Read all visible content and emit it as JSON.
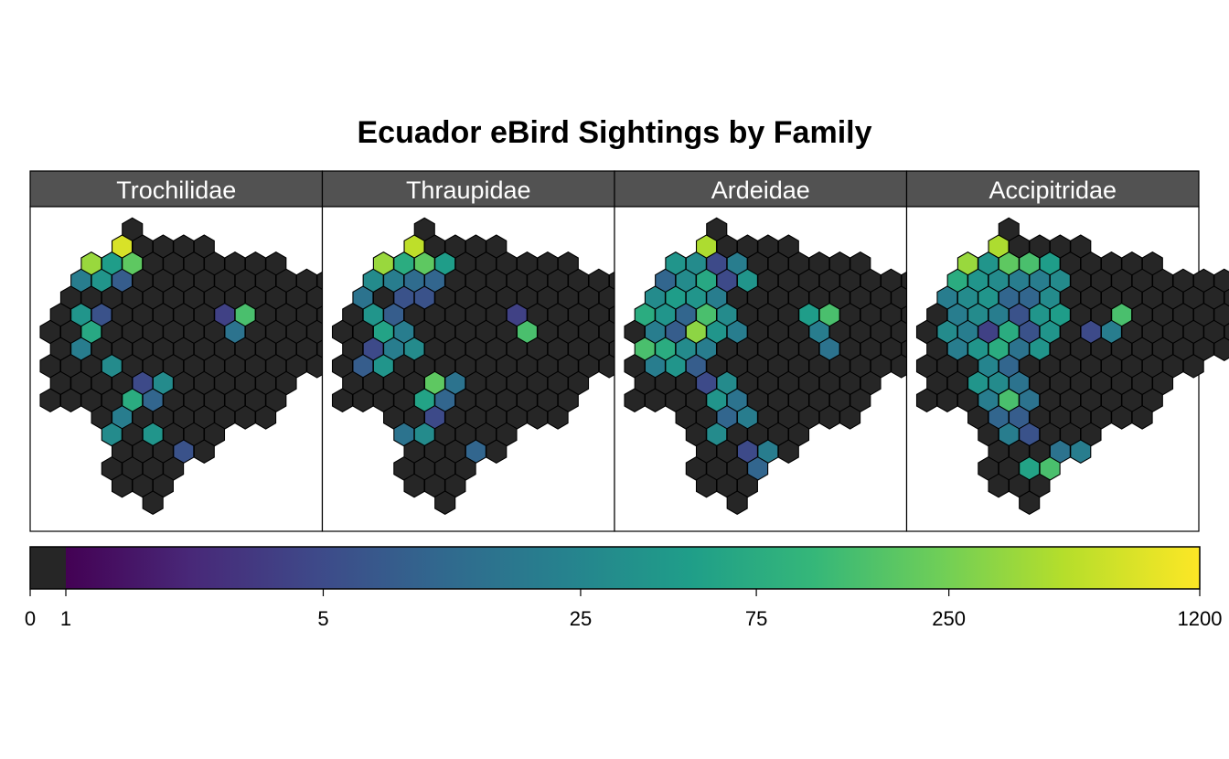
{
  "chart_data": {
    "type": "heatmap",
    "title": "Ecuador eBird Sightings by Family",
    "panels": [
      {
        "name": "Trochilidae",
        "highlight": [
          [
            7,
            0,
            1200
          ],
          [
            7,
            1,
            0
          ],
          [
            7,
            3,
            800
          ],
          [
            7,
            4,
            0
          ],
          [
            6,
            1,
            200
          ],
          [
            6,
            2,
            400
          ],
          [
            6,
            3,
            50
          ],
          [
            6,
            4,
            200
          ],
          [
            5,
            1,
            20
          ],
          [
            5,
            2,
            40
          ],
          [
            5,
            3,
            8
          ],
          [
            4,
            2,
            0
          ],
          [
            3,
            1,
            40
          ],
          [
            3,
            2,
            6
          ],
          [
            2,
            2,
            70
          ],
          [
            1,
            1,
            20
          ],
          [
            0,
            3,
            30
          ],
          [
            -1,
            4,
            5
          ],
          [
            -1,
            5,
            30
          ],
          [
            -2,
            4,
            80
          ],
          [
            -2,
            5,
            10
          ],
          [
            -3,
            3,
            20
          ],
          [
            -4,
            3,
            30
          ],
          [
            -4,
            5,
            40
          ],
          [
            -5,
            6,
            6
          ],
          [
            -6,
            7,
            50
          ],
          [
            -6,
            8,
            30
          ],
          [
            -7,
            6,
            40
          ],
          [
            -7,
            8,
            10
          ],
          [
            -8,
            6,
            12
          ],
          [
            -8,
            7,
            250
          ],
          [
            -9,
            8,
            5
          ],
          [
            -9,
            9,
            20
          ],
          [
            -10,
            8,
            150
          ],
          [
            -10,
            9,
            20
          ],
          [
            2,
            9,
            15
          ],
          [
            3,
            9,
            150
          ],
          [
            3,
            8,
            4
          ]
        ]
      },
      {
        "name": "Thraupidae",
        "highlight": [
          [
            7,
            0,
            900
          ],
          [
            7,
            3,
            600
          ],
          [
            6,
            1,
            100
          ],
          [
            6,
            2,
            400
          ],
          [
            6,
            3,
            80
          ],
          [
            6,
            4,
            200
          ],
          [
            6,
            5,
            50
          ],
          [
            5,
            1,
            30
          ],
          [
            5,
            2,
            20
          ],
          [
            5,
            3,
            12
          ],
          [
            5,
            4,
            10
          ],
          [
            4,
            1,
            15
          ],
          [
            4,
            3,
            6
          ],
          [
            4,
            4,
            6
          ],
          [
            3,
            1,
            40
          ],
          [
            3,
            2,
            8
          ],
          [
            2,
            2,
            60
          ],
          [
            2,
            3,
            20
          ],
          [
            1,
            1,
            5
          ],
          [
            1,
            2,
            20
          ],
          [
            1,
            3,
            30
          ],
          [
            0,
            1,
            8
          ],
          [
            0,
            2,
            40
          ],
          [
            -1,
            4,
            200
          ],
          [
            -1,
            5,
            15
          ],
          [
            -2,
            4,
            60
          ],
          [
            -2,
            5,
            10
          ],
          [
            -3,
            4,
            5
          ],
          [
            -4,
            2,
            20
          ],
          [
            -4,
            3,
            15
          ],
          [
            -4,
            4,
            30
          ],
          [
            -5,
            6,
            10
          ],
          [
            -6,
            7,
            40
          ],
          [
            -6,
            8,
            20
          ],
          [
            -6,
            9,
            5
          ],
          [
            -7,
            7,
            15
          ],
          [
            -7,
            8,
            5
          ],
          [
            -7,
            9,
            40
          ],
          [
            -8,
            6,
            100
          ],
          [
            -8,
            7,
            300
          ],
          [
            -8,
            8,
            30
          ],
          [
            -9,
            7,
            10
          ],
          [
            -9,
            8,
            5
          ],
          [
            -10,
            8,
            200
          ],
          [
            -10,
            9,
            80
          ],
          [
            -10,
            10,
            30
          ],
          [
            2,
            9,
            150
          ],
          [
            3,
            8,
            4
          ]
        ]
      },
      {
        "name": "Ardeidae",
        "highlight": [
          [
            8,
            0,
            200
          ],
          [
            7,
            3,
            500
          ],
          [
            6,
            0,
            5
          ],
          [
            6,
            1,
            20
          ],
          [
            6,
            2,
            40
          ],
          [
            6,
            3,
            30
          ],
          [
            6,
            4,
            5
          ],
          [
            6,
            5,
            20
          ],
          [
            5,
            1,
            10
          ],
          [
            5,
            2,
            30
          ],
          [
            5,
            3,
            70
          ],
          [
            5,
            4,
            5
          ],
          [
            5,
            5,
            40
          ],
          [
            4,
            1,
            30
          ],
          [
            4,
            2,
            50
          ],
          [
            4,
            3,
            40
          ],
          [
            4,
            4,
            20
          ],
          [
            3,
            0,
            80
          ],
          [
            3,
            1,
            40
          ],
          [
            3,
            2,
            10
          ],
          [
            3,
            3,
            150
          ],
          [
            3,
            4,
            30
          ],
          [
            2,
            1,
            20
          ],
          [
            2,
            2,
            8
          ],
          [
            2,
            3,
            350
          ],
          [
            2,
            4,
            40
          ],
          [
            2,
            5,
            20
          ],
          [
            1,
            0,
            150
          ],
          [
            1,
            1,
            80
          ],
          [
            1,
            2,
            30
          ],
          [
            1,
            3,
            20
          ],
          [
            0,
            1,
            20
          ],
          [
            0,
            2,
            40
          ],
          [
            0,
            3,
            8
          ],
          [
            -1,
            3,
            5
          ],
          [
            -1,
            4,
            30
          ],
          [
            -2,
            4,
            40
          ],
          [
            -2,
            5,
            15
          ],
          [
            -3,
            4,
            10
          ],
          [
            -3,
            5,
            20
          ],
          [
            -4,
            4,
            30
          ],
          [
            -5,
            5,
            5
          ],
          [
            -5,
            6,
            20
          ],
          [
            -6,
            6,
            10
          ],
          [
            -6,
            7,
            15
          ],
          [
            -6,
            8,
            40
          ],
          [
            -7,
            6,
            50
          ],
          [
            -7,
            7,
            30
          ],
          [
            -7,
            8,
            80
          ],
          [
            -8,
            6,
            5
          ],
          [
            -8,
            7,
            100
          ],
          [
            -8,
            8,
            30
          ],
          [
            -9,
            6,
            20
          ],
          [
            -9,
            7,
            5
          ],
          [
            -9,
            8,
            40
          ],
          [
            -9,
            9,
            6
          ],
          [
            -10,
            6,
            30
          ],
          [
            -10,
            7,
            150
          ],
          [
            -10,
            8,
            40
          ],
          [
            -10,
            9,
            60
          ],
          [
            -11,
            7,
            80
          ],
          [
            -12,
            7,
            15
          ],
          [
            -12,
            8,
            30
          ],
          [
            -12,
            9,
            100
          ],
          [
            3,
            8,
            50
          ],
          [
            3,
            9,
            150
          ],
          [
            2,
            9,
            20
          ],
          [
            1,
            9,
            15
          ]
        ]
      },
      {
        "name": "Accipitridae",
        "highlight": [
          [
            8,
            0,
            400
          ],
          [
            7,
            3,
            500
          ],
          [
            6,
            1,
            300
          ],
          [
            6,
            2,
            400
          ],
          [
            6,
            3,
            40
          ],
          [
            6,
            4,
            200
          ],
          [
            6,
            5,
            150
          ],
          [
            6,
            6,
            50
          ],
          [
            5,
            1,
            80
          ],
          [
            5,
            2,
            40
          ],
          [
            5,
            3,
            30
          ],
          [
            5,
            4,
            20
          ],
          [
            5,
            5,
            20
          ],
          [
            5,
            6,
            30
          ],
          [
            4,
            1,
            20
          ],
          [
            4,
            2,
            30
          ],
          [
            4,
            3,
            40
          ],
          [
            4,
            4,
            10
          ],
          [
            4,
            5,
            10
          ],
          [
            4,
            6,
            30
          ],
          [
            3,
            1,
            20
          ],
          [
            3,
            2,
            30
          ],
          [
            3,
            3,
            20
          ],
          [
            3,
            4,
            6
          ],
          [
            3,
            5,
            40
          ],
          [
            3,
            6,
            50
          ],
          [
            2,
            1,
            30
          ],
          [
            2,
            2,
            20
          ],
          [
            2,
            3,
            4
          ],
          [
            2,
            4,
            80
          ],
          [
            2,
            5,
            6
          ],
          [
            2,
            6,
            40
          ],
          [
            1,
            1,
            20
          ],
          [
            1,
            2,
            40
          ],
          [
            1,
            3,
            80
          ],
          [
            1,
            4,
            15
          ],
          [
            1,
            5,
            40
          ],
          [
            0,
            3,
            25
          ],
          [
            0,
            4,
            10
          ],
          [
            -1,
            2,
            40
          ],
          [
            -1,
            3,
            30
          ],
          [
            -1,
            4,
            15
          ],
          [
            -2,
            3,
            20
          ],
          [
            -2,
            4,
            150
          ],
          [
            -2,
            5,
            15
          ],
          [
            -3,
            3,
            10
          ],
          [
            -3,
            4,
            8
          ],
          [
            -4,
            4,
            20
          ],
          [
            -4,
            5,
            6
          ],
          [
            -5,
            6,
            15
          ],
          [
            -5,
            7,
            20
          ],
          [
            -6,
            5,
            60
          ],
          [
            -6,
            6,
            150
          ],
          [
            -7,
            6,
            8
          ],
          [
            -7,
            7,
            30
          ],
          [
            -7,
            8,
            60
          ],
          [
            -8,
            6,
            5
          ],
          [
            -8,
            7,
            20
          ],
          [
            -8,
            8,
            400
          ],
          [
            -8,
            9,
            40
          ],
          [
            -9,
            7,
            10
          ],
          [
            -9,
            8,
            6
          ],
          [
            -10,
            8,
            200
          ],
          [
            -10,
            9,
            100
          ],
          [
            -10,
            10,
            40
          ],
          [
            -11,
            8,
            50
          ],
          [
            -11,
            9,
            80
          ],
          [
            -12,
            9,
            40
          ],
          [
            -12,
            10,
            20
          ],
          [
            3,
            9,
            150
          ],
          [
            2,
            9,
            20
          ],
          [
            2,
            8,
            5
          ],
          [
            -9,
            9,
            30
          ],
          [
            -9,
            10,
            10
          ],
          [
            -11,
            7,
            30
          ],
          [
            -12,
            8,
            60
          ]
        ]
      }
    ],
    "shape_rows": [
      [
        0,
        0
      ],
      [
        1,
        0
      ],
      [
        2,
        1
      ],
      [
        3,
        1
      ],
      [
        4,
        2
      ],
      [
        5,
        2
      ],
      [
        6,
        2
      ],
      [
        7,
        2
      ],
      [
        8,
        1
      ],
      [
        9,
        1
      ],
      [
        10,
        2
      ],
      [
        11,
        3
      ],
      [
        12,
        3
      ],
      [
        13,
        3
      ],
      [
        14,
        2
      ],
      [
        15,
        1
      ],
      [
        16,
        1
      ],
      [
        17,
        1
      ],
      [
        18,
        0
      ],
      [
        19,
        0
      ],
      [
        20,
        0
      ],
      [
        21,
        1
      ],
      [
        22,
        0
      ],
      [
        23,
        1
      ],
      [
        24,
        1
      ],
      [
        25,
        0
      ]
    ],
    "zero_color": "#262626",
    "colorbar": {
      "ticks": [
        "0",
        "1",
        "5",
        "25",
        "75",
        "250",
        "1200"
      ],
      "stops": [
        "#440154",
        "#482878",
        "#3e4989",
        "#31688e",
        "#26828e",
        "#1f9e89",
        "#35b779",
        "#6ece58",
        "#b5de2b",
        "#fde725"
      ]
    }
  }
}
